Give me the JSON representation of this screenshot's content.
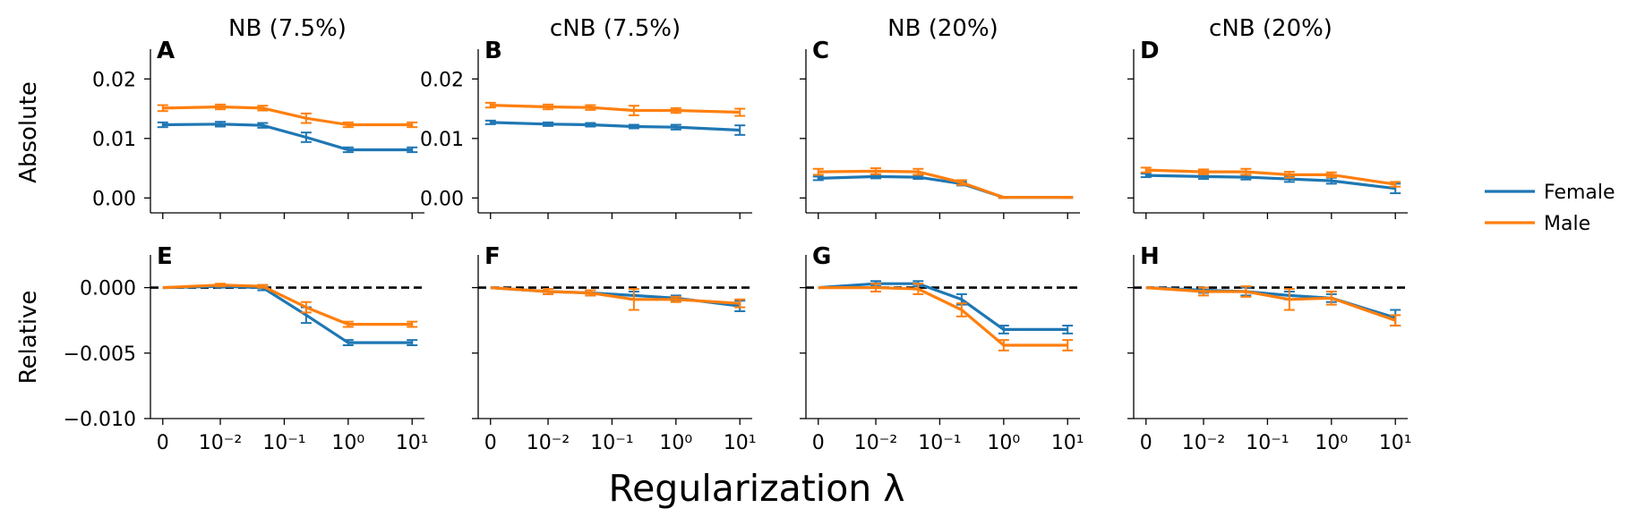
{
  "figure": {
    "xlabel": "Regularization λ",
    "row_labels": [
      "Absolute",
      "Relative"
    ],
    "x_tick_labels": [
      "0",
      "10⁻²",
      "10⁻¹",
      "10⁰",
      "10¹"
    ]
  },
  "legend": {
    "placement": "right",
    "items": [
      {
        "label": "Female",
        "color": "#1f77b4"
      },
      {
        "label": "Male",
        "color": "#ff7f0e"
      }
    ]
  },
  "chart_data": [
    {
      "type": "line",
      "panel": "A",
      "title": "NB (7.5%)",
      "row": "Absolute",
      "ylim": [
        -0.0025,
        0.025
      ],
      "yticks": [
        "0.00",
        "0.01",
        "0.02"
      ],
      "x": [
        0,
        0.01,
        0.046,
        0.22,
        1,
        10
      ],
      "series": [
        {
          "name": "Female",
          "values": [
            0.0123,
            0.0124,
            0.0122,
            0.0102,
            0.0081,
            0.0081
          ],
          "err": [
            0.0004,
            0.0004,
            0.0004,
            0.0008,
            0.0004,
            0.0004
          ]
        },
        {
          "name": "Male",
          "values": [
            0.0151,
            0.0153,
            0.0151,
            0.0134,
            0.0123,
            0.0123
          ],
          "err": [
            0.0005,
            0.0004,
            0.0004,
            0.0008,
            0.0004,
            0.0004
          ]
        }
      ]
    },
    {
      "type": "line",
      "panel": "B",
      "title": "cNB (7.5%)",
      "row": "Absolute",
      "ylim": [
        -0.0025,
        0.025
      ],
      "yticks": [
        "0.00",
        "0.01",
        "0.02"
      ],
      "x": [
        0,
        0.01,
        0.046,
        0.22,
        1,
        10
      ],
      "series": [
        {
          "name": "Female",
          "values": [
            0.0127,
            0.0124,
            0.0123,
            0.012,
            0.0119,
            0.0114
          ],
          "err": [
            0.0003,
            0.0003,
            0.0003,
            0.0003,
            0.0004,
            0.0008
          ]
        },
        {
          "name": "Male",
          "values": [
            0.0156,
            0.0153,
            0.0152,
            0.0147,
            0.0147,
            0.0144
          ],
          "err": [
            0.0004,
            0.0004,
            0.0004,
            0.0008,
            0.0004,
            0.0006
          ]
        }
      ]
    },
    {
      "type": "line",
      "panel": "C",
      "title": "NB (20%)",
      "row": "Absolute",
      "ylim": [
        -0.0025,
        0.025
      ],
      "yticks": [],
      "x": [
        0,
        0.01,
        0.046,
        0.22,
        1,
        10
      ],
      "series": [
        {
          "name": "Female",
          "values": [
            0.0033,
            0.0036,
            0.0035,
            0.0024,
            0.0001,
            0.0001
          ],
          "err": [
            0.0003,
            0.0003,
            0.0003,
            0.0003,
            0.0001,
            0.0001
          ]
        },
        {
          "name": "Male",
          "values": [
            0.0044,
            0.0045,
            0.0044,
            0.0026,
            0.0001,
            0.0001
          ],
          "err": [
            0.0005,
            0.0005,
            0.0005,
            0.0004,
            0.0001,
            0.0001
          ]
        }
      ]
    },
    {
      "type": "line",
      "panel": "D",
      "title": "cNB (20%)",
      "row": "Absolute",
      "ylim": [
        -0.0025,
        0.025
      ],
      "yticks": [],
      "x": [
        0,
        0.01,
        0.046,
        0.22,
        1,
        10
      ],
      "series": [
        {
          "name": "Female",
          "values": [
            0.0038,
            0.0036,
            0.0035,
            0.0032,
            0.0029,
            0.0016
          ],
          "err": [
            0.0003,
            0.0004,
            0.0004,
            0.0005,
            0.0005,
            0.0008
          ]
        },
        {
          "name": "Male",
          "values": [
            0.0047,
            0.0044,
            0.0044,
            0.0039,
            0.0039,
            0.0023
          ],
          "err": [
            0.0004,
            0.0004,
            0.0005,
            0.0005,
            0.0004,
            0.0004
          ]
        }
      ]
    },
    {
      "type": "line",
      "panel": "E",
      "title": "",
      "row": "Relative",
      "ylim": [
        -0.01,
        0.0025
      ],
      "yticks": [
        "−0.010",
        "−0.005",
        "0.000"
      ],
      "reference_line": 0,
      "x": [
        0,
        0.01,
        0.046,
        0.22,
        1,
        10
      ],
      "series": [
        {
          "name": "Female",
          "values": [
            0,
            0.0001,
            0.0,
            -0.0021,
            -0.0042,
            -0.0042
          ],
          "err": [
            0,
            0.0001,
            0.0002,
            0.0006,
            0.0002,
            0.0002
          ]
        },
        {
          "name": "Male",
          "values": [
            0,
            0.0002,
            0.0001,
            -0.0015,
            -0.0028,
            -0.0028
          ],
          "err": [
            0,
            0.0001,
            0.0001,
            0.0004,
            0.0002,
            0.0002
          ]
        }
      ]
    },
    {
      "type": "line",
      "panel": "F",
      "title": "",
      "row": "Relative",
      "ylim": [
        -0.01,
        0.0025
      ],
      "yticks": [],
      "reference_line": 0,
      "x": [
        0,
        0.01,
        0.046,
        0.22,
        1,
        10
      ],
      "series": [
        {
          "name": "Female",
          "values": [
            0,
            -0.0003,
            -0.0004,
            -0.0006,
            -0.0008,
            -0.0014
          ],
          "err": [
            0,
            0.0002,
            0.0002,
            0.0003,
            0.0002,
            0.0004
          ]
        },
        {
          "name": "Male",
          "values": [
            0,
            -0.0003,
            -0.0004,
            -0.0009,
            -0.0009,
            -0.0012
          ],
          "err": [
            0,
            0.0002,
            0.0002,
            0.0008,
            0.0002,
            0.0003
          ]
        }
      ]
    },
    {
      "type": "line",
      "panel": "G",
      "title": "",
      "row": "Relative",
      "ylim": [
        -0.01,
        0.0025
      ],
      "yticks": [],
      "reference_line": 0,
      "x": [
        0,
        0.01,
        0.046,
        0.22,
        1,
        10
      ],
      "series": [
        {
          "name": "Female",
          "values": [
            0,
            0.0003,
            0.0003,
            -0.0009,
            -0.0032,
            -0.0032
          ],
          "err": [
            0,
            0.0002,
            0.0002,
            0.0004,
            0.0003,
            0.0003
          ]
        },
        {
          "name": "Male",
          "values": [
            0,
            0.0,
            -0.0001,
            -0.0017,
            -0.0044,
            -0.0044
          ],
          "err": [
            0,
            0.0003,
            0.0004,
            0.0005,
            0.0004,
            0.0004
          ]
        }
      ]
    },
    {
      "type": "line",
      "panel": "H",
      "title": "",
      "row": "Relative",
      "ylim": [
        -0.01,
        0.0025
      ],
      "yticks": [],
      "reference_line": 0,
      "x": [
        0,
        0.01,
        0.046,
        0.22,
        1,
        10
      ],
      "series": [
        {
          "name": "Female",
          "values": [
            0,
            -0.0002,
            -0.0003,
            -0.0006,
            -0.0008,
            -0.0023
          ],
          "err": [
            0,
            0.0002,
            0.0003,
            0.0003,
            0.0003,
            0.0006
          ]
        },
        {
          "name": "Male",
          "values": [
            0,
            -0.0003,
            -0.0003,
            -0.0009,
            -0.0008,
            -0.0025
          ],
          "err": [
            0,
            0.0003,
            0.0004,
            0.0008,
            0.0005,
            0.0004
          ]
        }
      ]
    }
  ]
}
